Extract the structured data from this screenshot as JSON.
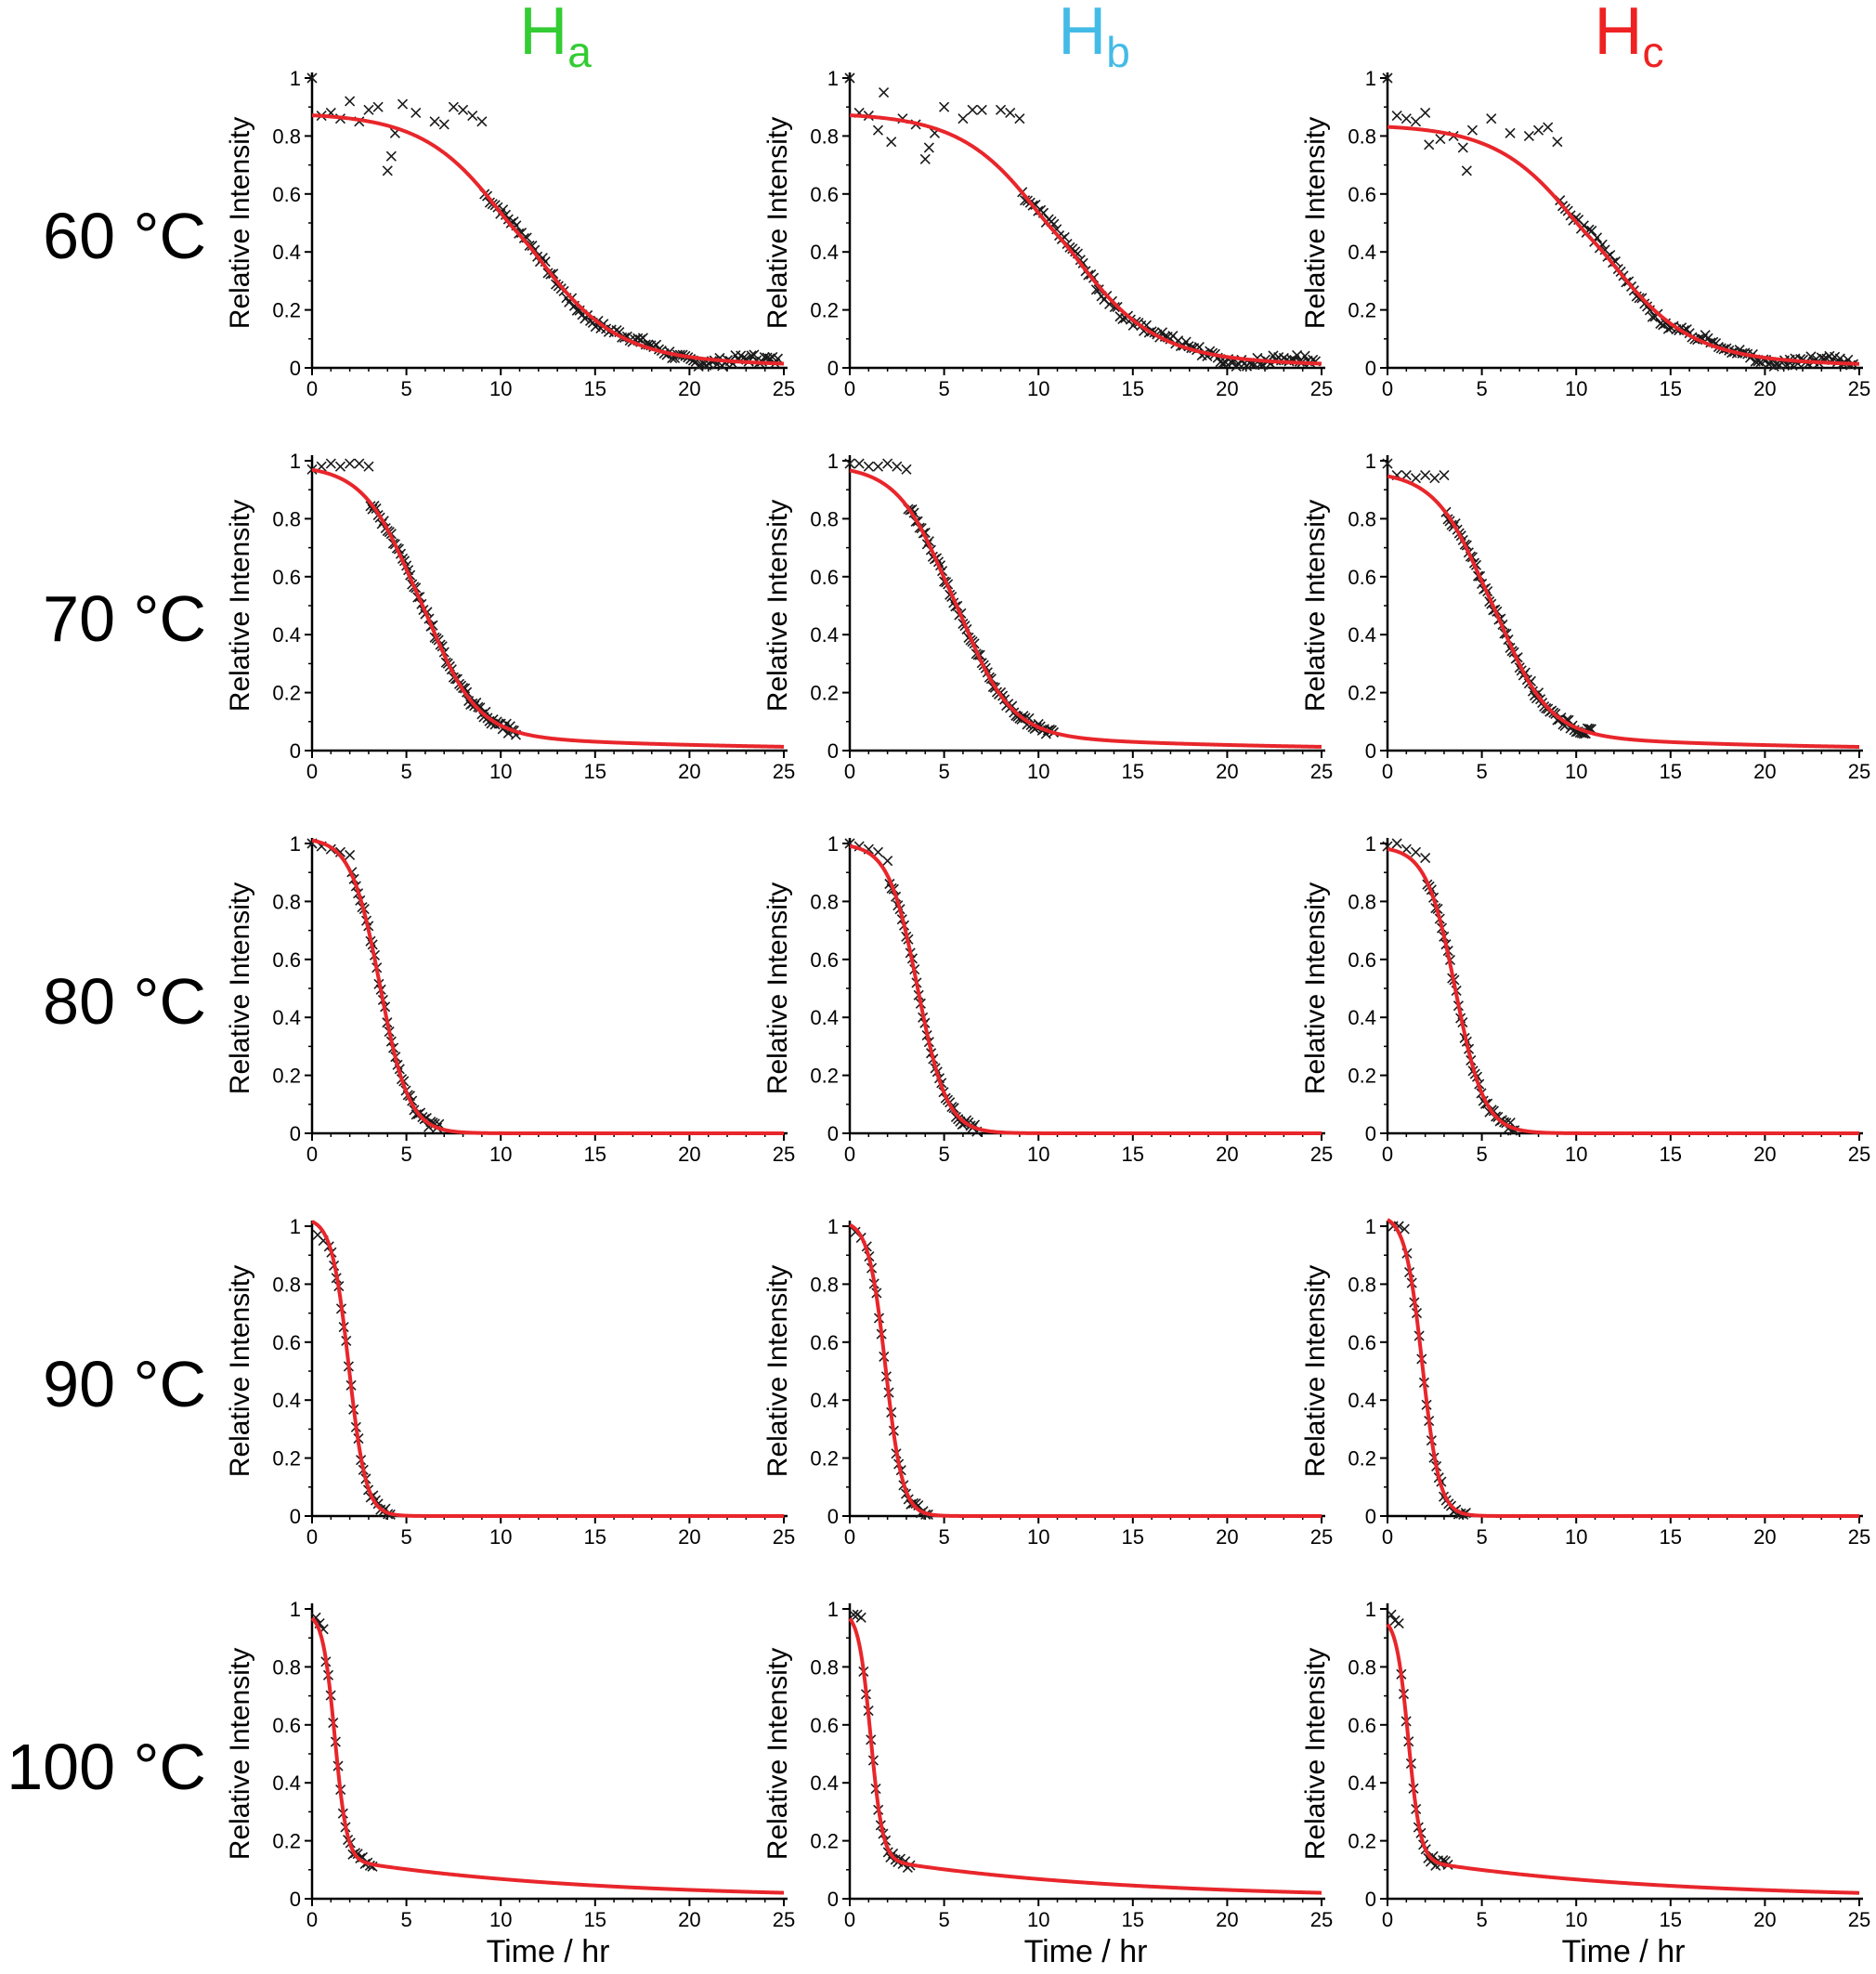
{
  "figure": {
    "column_headers": [
      {
        "main": "H",
        "sub": "a",
        "color": "#33cc33"
      },
      {
        "main": "H",
        "sub": "b",
        "color": "#44bbe6"
      },
      {
        "main": "H",
        "sub": "c",
        "color": "#ee2222"
      }
    ],
    "row_labels": [
      "60 °C",
      "70 °C",
      "80 °C",
      "90 °C",
      "100 °C"
    ],
    "ylabel": "Relative Intensity",
    "xlabel": "Time / hr",
    "xticks": [
      "0",
      "5",
      "10",
      "15",
      "20",
      "25"
    ],
    "yticks": [
      "0",
      "0.2",
      "0.4",
      "0.6",
      "0.8",
      "1"
    ],
    "colors": {
      "fit": "#e8262b",
      "data": "#1a1a1a",
      "axis": "#000000"
    }
  },
  "chart_data": [
    {
      "type": "scatter",
      "temperature": "60 °C",
      "proton": "Ha",
      "xlim": [
        0,
        25
      ],
      "ylim": [
        0,
        1
      ],
      "data_x_end": 24.8,
      "fit": {
        "plateau": 0.88,
        "t_mid": 11.0,
        "k": 0.42,
        "tail": 0.12
      },
      "points": [
        [
          0,
          1.0
        ],
        [
          0.5,
          0.87
        ],
        [
          1,
          0.88
        ],
        [
          1.5,
          0.86
        ],
        [
          2,
          0.92
        ],
        [
          2.5,
          0.85
        ],
        [
          3,
          0.89
        ],
        [
          3.5,
          0.9
        ],
        [
          4,
          0.68
        ],
        [
          4.2,
          0.73
        ],
        [
          4.4,
          0.81
        ],
        [
          4.8,
          0.91
        ],
        [
          5.5,
          0.88
        ],
        [
          6.5,
          0.85
        ],
        [
          7,
          0.84
        ],
        [
          7.5,
          0.9
        ],
        [
          8,
          0.89
        ],
        [
          8.5,
          0.87
        ],
        [
          9,
          0.85
        ]
      ]
    },
    {
      "type": "scatter",
      "temperature": "60 °C",
      "proton": "Hb",
      "xlim": [
        0,
        25
      ],
      "ylim": [
        0,
        1
      ],
      "data_x_end": 24.8,
      "fit": {
        "plateau": 0.88,
        "t_mid": 11.0,
        "k": 0.42,
        "tail": 0.12
      },
      "points": [
        [
          0,
          1.0
        ],
        [
          0.5,
          0.88
        ],
        [
          1,
          0.87
        ],
        [
          1.5,
          0.82
        ],
        [
          1.8,
          0.95
        ],
        [
          2.2,
          0.78
        ],
        [
          2.8,
          0.86
        ],
        [
          3.5,
          0.84
        ],
        [
          4,
          0.72
        ],
        [
          4.2,
          0.76
        ],
        [
          4.5,
          0.81
        ],
        [
          5,
          0.9
        ],
        [
          6,
          0.86
        ],
        [
          6.5,
          0.89
        ],
        [
          7,
          0.89
        ],
        [
          8,
          0.89
        ],
        [
          8.5,
          0.88
        ],
        [
          9,
          0.86
        ]
      ]
    },
    {
      "type": "scatter",
      "temperature": "60 °C",
      "proton": "Hc",
      "xlim": [
        0,
        25
      ],
      "ylim": [
        0,
        1
      ],
      "data_x_end": 24.8,
      "fit": {
        "plateau": 0.84,
        "t_mid": 10.9,
        "k": 0.42,
        "tail": 0.12
      },
      "points": [
        [
          0,
          1.0
        ],
        [
          0.5,
          0.87
        ],
        [
          1,
          0.86
        ],
        [
          1.5,
          0.85
        ],
        [
          2,
          0.88
        ],
        [
          2.2,
          0.77
        ],
        [
          2.8,
          0.79
        ],
        [
          3.5,
          0.8
        ],
        [
          4,
          0.76
        ],
        [
          4.2,
          0.68
        ],
        [
          4.5,
          0.82
        ],
        [
          5.5,
          0.86
        ],
        [
          6.5,
          0.81
        ],
        [
          7.5,
          0.8
        ],
        [
          8,
          0.82
        ],
        [
          8.5,
          0.83
        ],
        [
          9,
          0.78
        ]
      ]
    },
    {
      "type": "scatter",
      "temperature": "70 °C",
      "proton": "Ha",
      "xlim": [
        0,
        25
      ],
      "ylim": [
        0,
        1
      ],
      "data_x_end": 10.8,
      "fit": {
        "plateau": 0.985,
        "t_mid": 5.7,
        "k": 0.72,
        "tail": 0.18
      },
      "points": [
        [
          0,
          0.97
        ],
        [
          0.5,
          0.98
        ],
        [
          1,
          0.99
        ],
        [
          1.5,
          0.98
        ],
        [
          2,
          0.99
        ],
        [
          2.5,
          0.99
        ],
        [
          3,
          0.98
        ]
      ]
    },
    {
      "type": "scatter",
      "temperature": "70 °C",
      "proton": "Hb",
      "xlim": [
        0,
        25
      ],
      "ylim": [
        0,
        1
      ],
      "data_x_end": 10.8,
      "fit": {
        "plateau": 0.985,
        "t_mid": 5.5,
        "k": 0.72,
        "tail": 0.18
      },
      "points": [
        [
          0,
          0.99
        ],
        [
          0.5,
          0.99
        ],
        [
          1,
          0.98
        ],
        [
          1.5,
          0.98
        ],
        [
          2,
          0.99
        ],
        [
          2.5,
          0.98
        ],
        [
          3,
          0.97
        ]
      ]
    },
    {
      "type": "scatter",
      "temperature": "70 °C",
      "proton": "Hc",
      "xlim": [
        0,
        25
      ],
      "ylim": [
        0,
        1
      ],
      "data_x_end": 10.8,
      "fit": {
        "plateau": 0.965,
        "t_mid": 5.5,
        "k": 0.72,
        "tail": 0.18
      },
      "points": [
        [
          0,
          0.99
        ],
        [
          0.5,
          0.95
        ],
        [
          1,
          0.95
        ],
        [
          1.5,
          0.94
        ],
        [
          2,
          0.95
        ],
        [
          2.5,
          0.94
        ],
        [
          3,
          0.95
        ]
      ]
    },
    {
      "type": "scatter",
      "temperature": "80 °C",
      "proton": "Ha",
      "xlim": [
        0,
        25
      ],
      "ylim": [
        0,
        1
      ],
      "data_x_end": 6.8,
      "fit": {
        "plateau": 1.02,
        "t_mid": 3.6,
        "k": 1.3,
        "tail": 0
      },
      "points": [
        [
          0,
          1.0
        ],
        [
          0.5,
          0.99
        ],
        [
          1,
          0.98
        ],
        [
          1.5,
          0.97
        ],
        [
          2,
          0.96
        ]
      ]
    },
    {
      "type": "scatter",
      "temperature": "80 °C",
      "proton": "Hb",
      "xlim": [
        0,
        25
      ],
      "ylim": [
        0,
        1
      ],
      "data_x_end": 6.8,
      "fit": {
        "plateau": 1.0,
        "t_mid": 3.6,
        "k": 1.3,
        "tail": 0
      },
      "points": [
        [
          0,
          1.0
        ],
        [
          0.5,
          0.99
        ],
        [
          1,
          0.98
        ],
        [
          1.5,
          0.97
        ],
        [
          2,
          0.94
        ]
      ]
    },
    {
      "type": "scatter",
      "temperature": "80 °C",
      "proton": "Hc",
      "xlim": [
        0,
        25
      ],
      "ylim": [
        0,
        1
      ],
      "data_x_end": 6.8,
      "fit": {
        "plateau": 0.99,
        "t_mid": 3.6,
        "k": 1.3,
        "tail": 0
      },
      "points": [
        [
          0,
          0.99
        ],
        [
          0.5,
          1.0
        ],
        [
          1,
          0.98
        ],
        [
          1.5,
          0.97
        ],
        [
          2,
          0.95
        ]
      ]
    },
    {
      "type": "scatter",
      "temperature": "90 °C",
      "proton": "Ha",
      "xlim": [
        0,
        25
      ],
      "ylim": [
        0,
        1
      ],
      "data_x_end": 4.2,
      "fit": {
        "plateau": 1.03,
        "t_mid": 1.95,
        "k": 2.2,
        "tail": 0
      },
      "points": [
        [
          0.3,
          0.97
        ],
        [
          0.6,
          0.95
        ],
        [
          0.9,
          0.93
        ]
      ]
    },
    {
      "type": "scatter",
      "temperature": "90 °C",
      "proton": "Hb",
      "xlim": [
        0,
        25
      ],
      "ylim": [
        0,
        1
      ],
      "data_x_end": 4.2,
      "fit": {
        "plateau": 1.02,
        "t_mid": 1.9,
        "k": 2.2,
        "tail": 0
      },
      "points": [
        [
          0.3,
          0.98
        ],
        [
          0.6,
          0.96
        ],
        [
          0.9,
          0.93
        ]
      ]
    },
    {
      "type": "scatter",
      "temperature": "90 °C",
      "proton": "Hc",
      "xlim": [
        0,
        25
      ],
      "ylim": [
        0,
        1
      ],
      "data_x_end": 4.2,
      "fit": {
        "plateau": 1.04,
        "t_mid": 1.85,
        "k": 2.2,
        "tail": 0
      },
      "points": [
        [
          0.3,
          1.0
        ],
        [
          0.6,
          1.0
        ],
        [
          0.9,
          0.99
        ]
      ]
    },
    {
      "type": "scatter",
      "temperature": "100 °C",
      "proton": "Ha",
      "xlim": [
        0,
        25
      ],
      "ylim": [
        0,
        1
      ],
      "data_x_end": 3.2,
      "fit": {
        "plateau": 0.985,
        "t_mid": 1.2,
        "k": 3.0,
        "tail": 0.4
      },
      "points": [
        [
          0.2,
          0.97
        ],
        [
          0.4,
          0.95
        ],
        [
          0.6,
          0.93
        ]
      ]
    },
    {
      "type": "scatter",
      "temperature": "100 °C",
      "proton": "Hb",
      "xlim": [
        0,
        25
      ],
      "ylim": [
        0,
        1
      ],
      "data_x_end": 3.2,
      "fit": {
        "plateau": 0.99,
        "t_mid": 1.1,
        "k": 3.0,
        "tail": 0.4
      },
      "points": [
        [
          0.2,
          0.98
        ],
        [
          0.4,
          0.98
        ],
        [
          0.6,
          0.97
        ]
      ]
    },
    {
      "type": "scatter",
      "temperature": "100 °C",
      "proton": "Hc",
      "xlim": [
        0,
        25
      ],
      "ylim": [
        0,
        1
      ],
      "data_x_end": 3.2,
      "fit": {
        "plateau": 0.97,
        "t_mid": 1.1,
        "k": 3.0,
        "tail": 0.4
      },
      "points": [
        [
          0.2,
          0.98
        ],
        [
          0.4,
          0.96
        ],
        [
          0.6,
          0.95
        ]
      ]
    }
  ]
}
